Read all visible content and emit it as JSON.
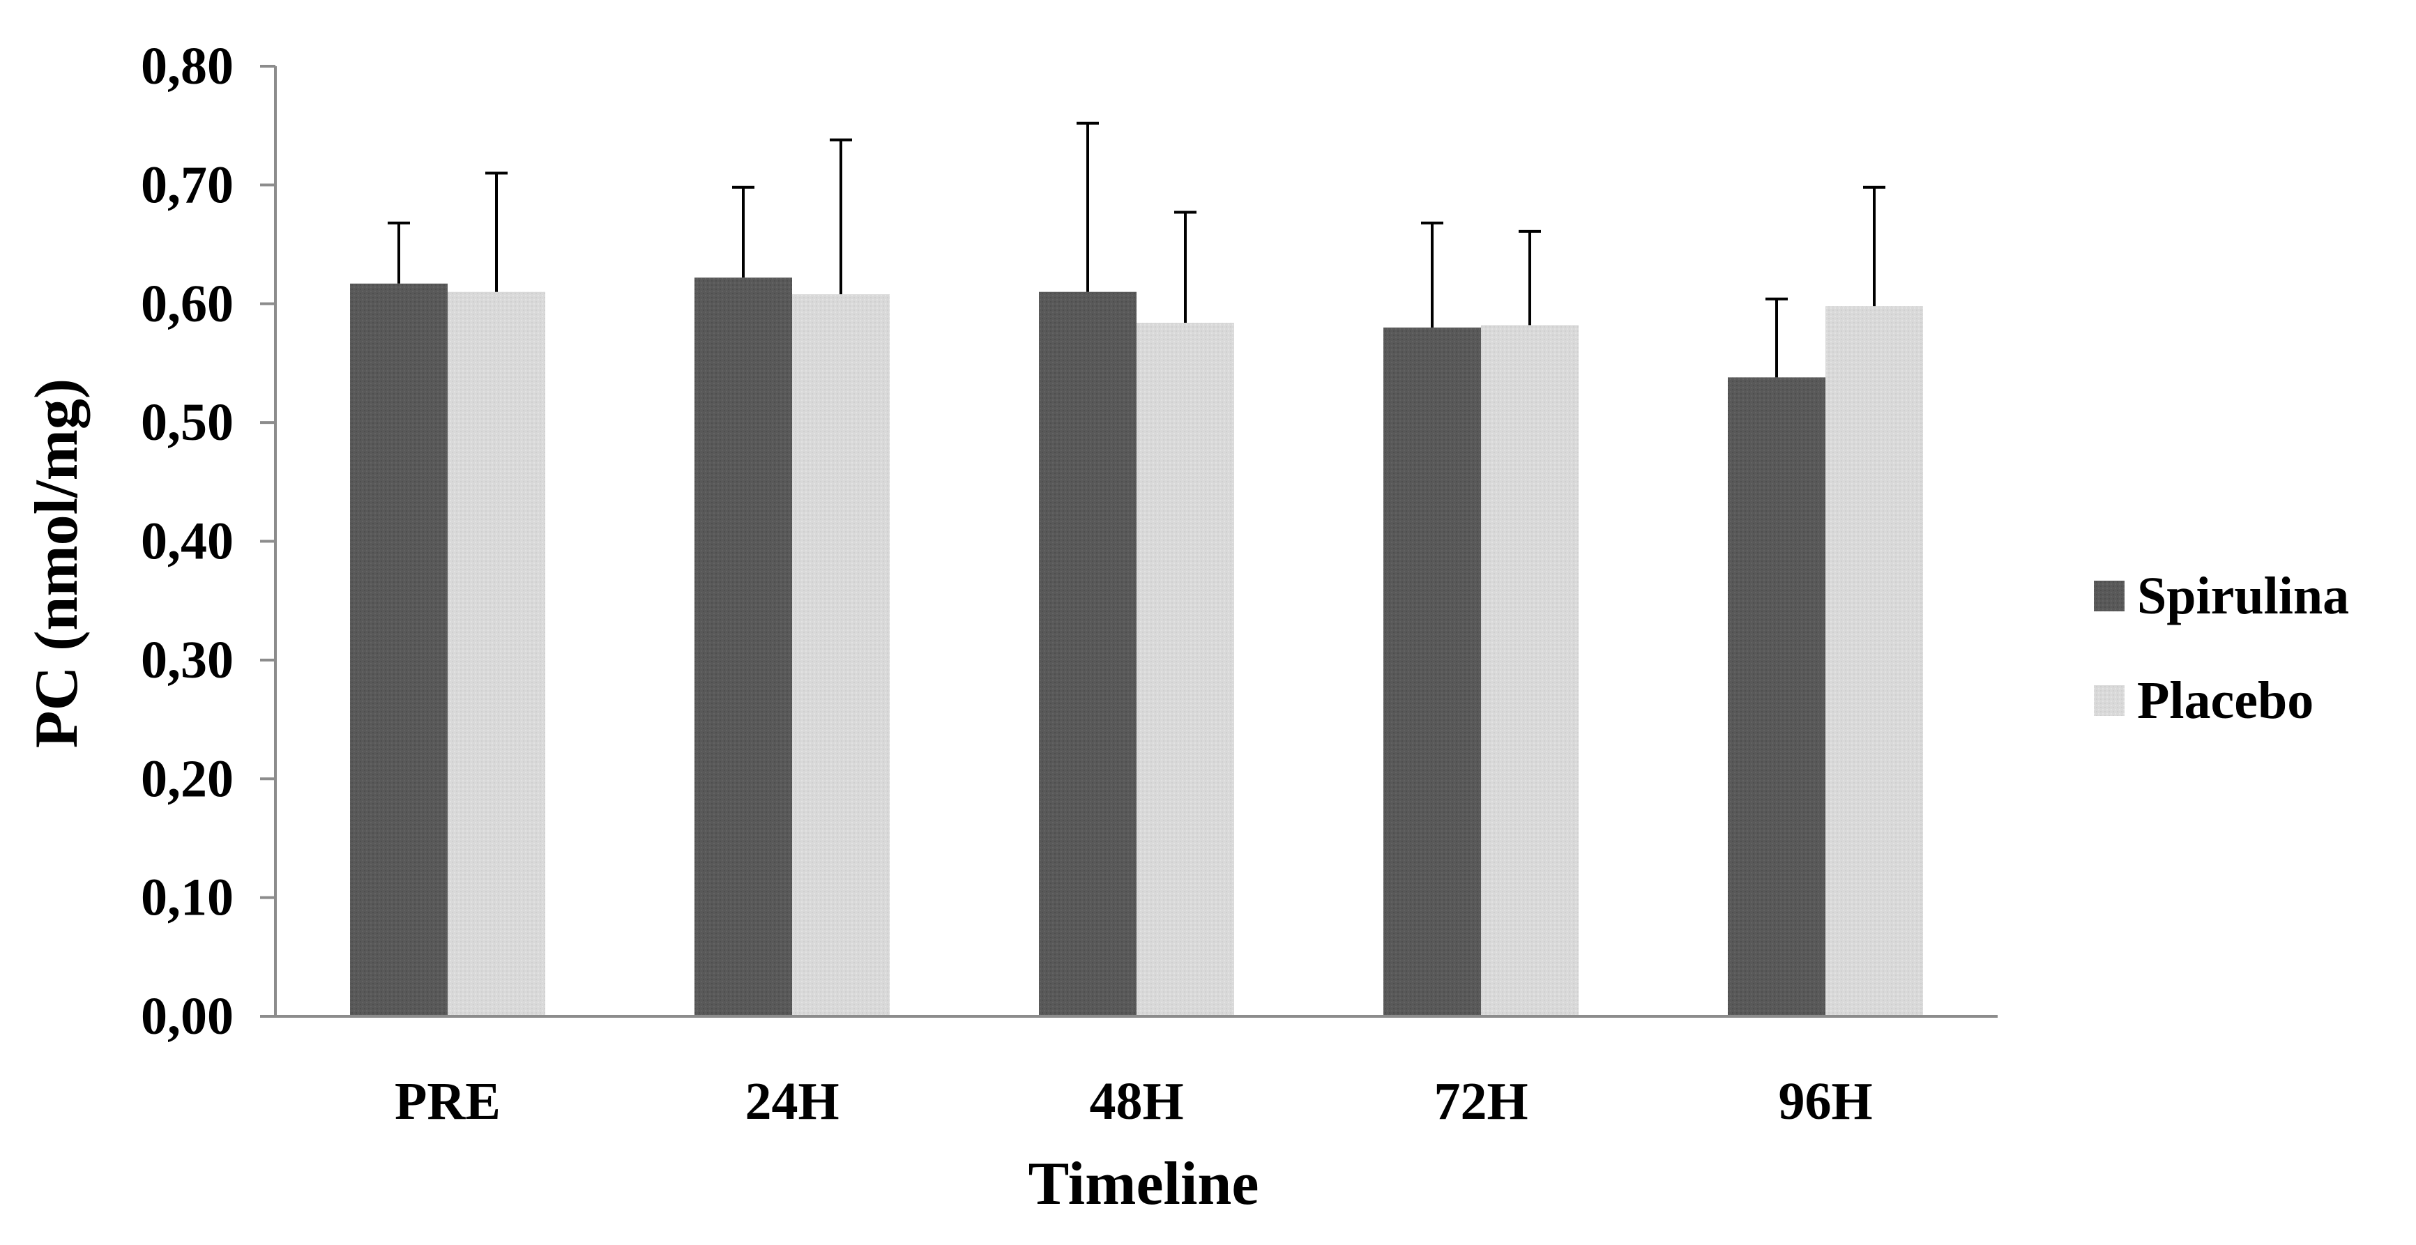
{
  "chart_data": {
    "type": "bar",
    "title": "",
    "xlabel": "Timeline",
    "ylabel": "PC (nmol/mg)",
    "categories": [
      "PRE",
      "24H",
      "48H",
      "72H",
      "96H"
    ],
    "series": [
      {
        "name": "Spirulina",
        "values": [
          0.617,
          0.622,
          0.61,
          0.58,
          0.538
        ],
        "error_upper": [
          0.668,
          0.698,
          0.752,
          0.668,
          0.604
        ],
        "color": "#595959"
      },
      {
        "name": "Placebo",
        "values": [
          0.61,
          0.608,
          0.584,
          0.582,
          0.598
        ],
        "error_upper": [
          0.71,
          0.738,
          0.677,
          0.661,
          0.698
        ],
        "color": "#d9d9d9"
      }
    ],
    "ylim": [
      0,
      0.8
    ],
    "yticks": [
      "0,00",
      "0,10",
      "0,20",
      "0,30",
      "0,40",
      "0,50",
      "0,60",
      "0,70",
      "0,80"
    ],
    "grid": false,
    "legend_position": "right"
  }
}
